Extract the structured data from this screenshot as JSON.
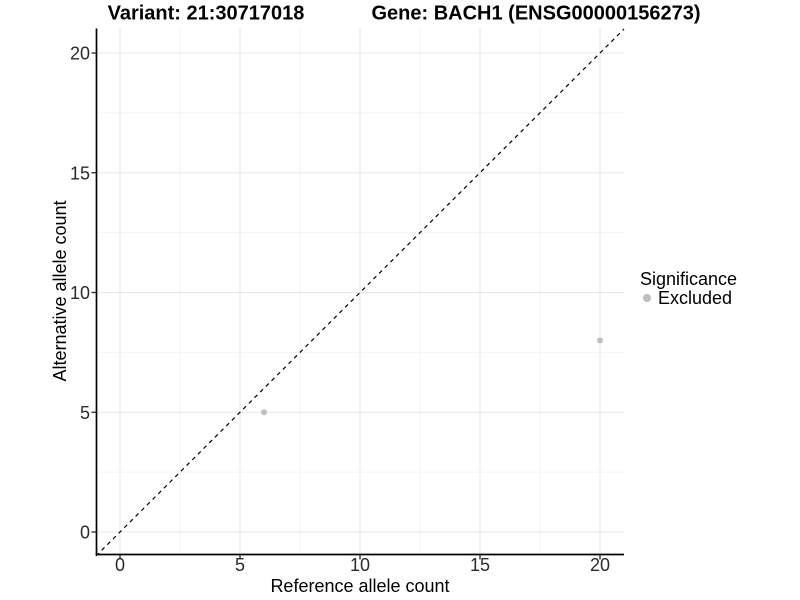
{
  "header": {
    "variant_title": "Variant: 21:30717018",
    "gene_title": "Gene: BACH1 (ENSG00000156273)"
  },
  "chart_data": {
    "type": "scatter",
    "titles": [
      "Variant: 21:30717018",
      "Gene: BACH1 (ENSG00000156273)"
    ],
    "xlabel": "Reference allele count",
    "ylabel": "Alternative allele count",
    "xlim": [
      -1,
      21
    ],
    "ylim": [
      -1,
      21
    ],
    "xticks": [
      0,
      5,
      10,
      15,
      20
    ],
    "yticks": [
      0,
      5,
      10,
      15,
      20
    ],
    "minor_xticks": [
      2.5,
      7.5,
      12.5,
      17.5
    ],
    "minor_yticks": [
      2.5,
      7.5,
      12.5,
      17.5
    ],
    "grid": "on",
    "reference_line": {
      "style": "dashed",
      "x": [
        -1,
        21
      ],
      "y": [
        -1,
        21
      ],
      "color": "#000000"
    },
    "series": [
      {
        "name": "Excluded",
        "color": "#bebebe",
        "points": [
          [
            6,
            5
          ],
          [
            20,
            8
          ]
        ]
      }
    ],
    "legend": {
      "title": "Significance",
      "position": "right",
      "entries": [
        {
          "label": "Excluded",
          "color": "#bebebe",
          "marker": "circle"
        }
      ]
    }
  },
  "colors": {
    "background": "#ffffff",
    "major_grid": "#e8e8e8",
    "minor_grid": "#f4f4f4",
    "axis_line": "#000000",
    "tick_mark": "#333333",
    "point": "#bebebe"
  }
}
